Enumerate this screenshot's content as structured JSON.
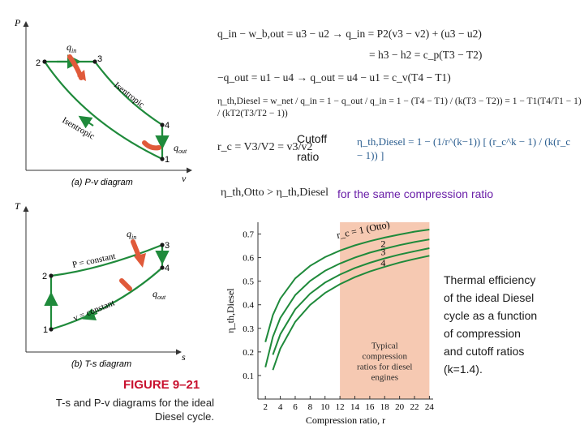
{
  "pv": {
    "axis_y": "P",
    "axis_x": "v",
    "caption": "(a) P-v diagram",
    "q_in": "q",
    "q_in_sub": "in",
    "q_out": "q",
    "q_out_sub": "out",
    "isentropic_upper": "Isentropic",
    "isentropic_lower": "Isentropic",
    "states": [
      "1",
      "2",
      "3",
      "4"
    ]
  },
  "ts": {
    "axis_y": "T",
    "axis_x": "s",
    "caption": "(b) T-s diagram",
    "q_in": "q",
    "q_in_sub": "in",
    "q_out": "q",
    "q_out_sub": "out",
    "p_const": "P = constant",
    "v_const": "v = constant",
    "states": [
      "1",
      "2",
      "3",
      "4"
    ]
  },
  "figure": {
    "number": "FIGURE 9–21",
    "caption_line1": "T-s and P-v diagrams for the ideal",
    "caption_line2": "Diesel cycle."
  },
  "equations": {
    "line1": "q_in − w_b,out = u3 − u2 → q_in = P2(v3 − v2) + (u3 − u2)",
    "line2": "= h3 − h2 = c_p(T3 − T2)",
    "line3": "−q_out = u1 − u4 → q_out = u4 − u1 = c_v(T4 − T1)",
    "line4": "η_th,Diesel = w_net / q_in = 1 − q_out / q_in = 1 − (T4 − T1) / (k(T3 − T2)) = 1 − T1(T4/T1 − 1) / (kT2(T3/T2 − 1))",
    "line5": "r_c = V3/V2 = v3/v2",
    "line6": "η_th,Diesel = 1 − (1/r^(k−1)) [ (r_c^k − 1) / (k(r_c − 1)) ]",
    "line7": "η_th,Otto > η_th,Diesel"
  },
  "cutoff_label_1": "Cutoff",
  "cutoff_label_2": "ratio",
  "same_compression": "for the same compression ratio",
  "thermal_note": [
    "Thermal efficiency",
    "of the ideal Diesel",
    "cycle as a function",
    "of compression",
    "and cutoff ratios",
    "(k=1.4)."
  ],
  "chart_data": {
    "type": "line",
    "xlabel": "Compression ratio, r",
    "ylabel": "η_th,Diesel",
    "x_ticks": [
      2,
      4,
      6,
      8,
      10,
      12,
      14,
      16,
      18,
      20,
      22,
      24
    ],
    "y_ticks": [
      0.1,
      0.2,
      0.3,
      0.4,
      0.5,
      0.6,
      0.7
    ],
    "xlim": [
      1,
      24.5
    ],
    "ylim": [
      0,
      0.75
    ],
    "k": 1.4,
    "series": [
      {
        "name": "r_c = 1 (Otto)",
        "r_c": 1,
        "x": [
          2,
          3,
          4,
          6,
          8,
          10,
          12,
          14,
          16,
          18,
          20,
          22,
          24
        ],
        "y": [
          0.242,
          0.356,
          0.426,
          0.512,
          0.565,
          0.602,
          0.63,
          0.652,
          0.67,
          0.685,
          0.698,
          0.71,
          0.719
        ]
      },
      {
        "name": "2",
        "r_c": 2,
        "x": [
          2,
          3,
          4,
          6,
          8,
          10,
          12,
          14,
          16,
          18,
          20,
          22,
          24
        ],
        "y": [
          0.135,
          0.264,
          0.344,
          0.441,
          0.501,
          0.544,
          0.575,
          0.6,
          0.621,
          0.638,
          0.653,
          0.666,
          0.677
        ]
      },
      {
        "name": "3",
        "r_c": 3,
        "x": [
          3,
          4,
          6,
          8,
          10,
          12,
          14,
          16,
          18,
          20,
          22,
          24
        ],
        "y": [
          0.188,
          0.275,
          0.381,
          0.447,
          0.494,
          0.528,
          0.556,
          0.578,
          0.597,
          0.613,
          0.627,
          0.64
        ]
      },
      {
        "name": "4",
        "r_c": 4,
        "x": [
          3,
          4,
          6,
          8,
          10,
          12,
          14,
          16,
          18,
          20,
          22,
          24
        ],
        "y": [
          0.123,
          0.214,
          0.328,
          0.399,
          0.45,
          0.487,
          0.517,
          0.541,
          0.561,
          0.579,
          0.594,
          0.608
        ]
      }
    ],
    "band": {
      "x_from": 12,
      "x_to": 24,
      "label": [
        "Typical",
        "compression",
        "ratios for diesel",
        "engines"
      ],
      "color": "#f6c9b2"
    },
    "colors": {
      "curve": "#1f8a3b",
      "axis": "#333333",
      "band": "#f6c9b2"
    }
  }
}
